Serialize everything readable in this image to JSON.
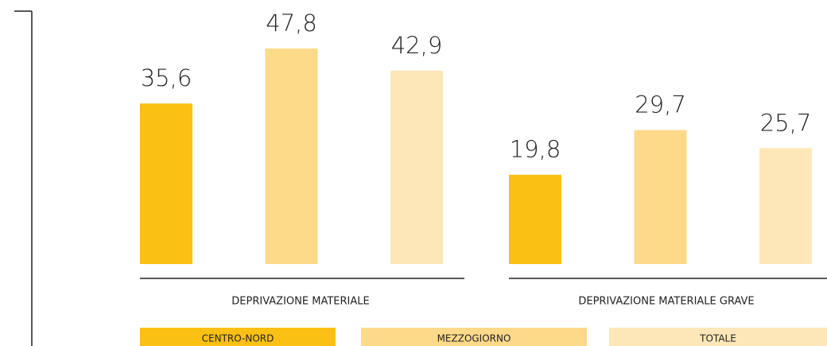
{
  "chart_data": {
    "type": "bar",
    "categories": [
      "DEPRIVAZIONE MATERIALE",
      "DEPRIVAZIONE MATERIALE GRAVE"
    ],
    "series": [
      {
        "name": "CENTRO-NORD",
        "color": "#fbc014",
        "values": [
          35.6,
          19.8
        ],
        "value_labels": [
          "35,6",
          "19,8"
        ]
      },
      {
        "name": "MEZZOGIORNO",
        "color": "#fdd98a",
        "values": [
          47.8,
          29.7
        ],
        "value_labels": [
          "47,8",
          "29,7"
        ]
      },
      {
        "name": "TOTALE",
        "color": "#fde7b8",
        "values": [
          42.9,
          25.7
        ],
        "value_labels": [
          "42,9",
          "25,7"
        ]
      }
    ]
  }
}
